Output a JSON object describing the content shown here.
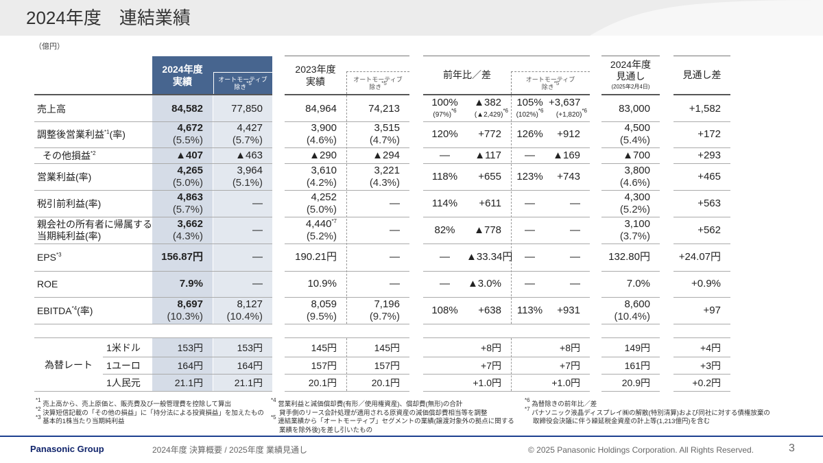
{
  "header": {
    "title": "2024年度　連結業績",
    "unit": "（億円）"
  },
  "table": {
    "column_headers": [
      [
        "2024年度",
        "実績"
      ],
      [
        "オートモーティブ",
        "除き*5"
      ],
      [
        "2023年度",
        "実績"
      ],
      [
        "オートモーティブ",
        "除き*5"
      ],
      [
        "前年比／差"
      ],
      [
        "オートモーティブ",
        "除き*5"
      ],
      [
        "2024年度",
        "見通し",
        "(2025年2月4日)"
      ],
      [
        "見通し差"
      ]
    ],
    "rows": [
      {
        "label": [
          "売上高"
        ],
        "cells": [
          [
            "84,582"
          ],
          [
            "77,850"
          ],
          [
            "84,964"
          ],
          [
            "74,213"
          ],
          [
            "100%",
            "(97%)*6"
          ],
          [
            "▲382",
            "(▲2,429)*6"
          ],
          [
            "105%",
            "(102%)*6"
          ],
          [
            "+3,637",
            "(+1,820)*6"
          ],
          [
            "83,000"
          ],
          [
            "+1,582"
          ]
        ]
      },
      {
        "label": [
          "調整後営業利益*1(率)"
        ],
        "cells": [
          [
            "4,672",
            "(5.5%)"
          ],
          [
            "4,427",
            "(5.7%)"
          ],
          [
            "3,900",
            "(4.6%)"
          ],
          [
            "3,515",
            "(4.7%)"
          ],
          [
            "120%"
          ],
          [
            "+772"
          ],
          [
            "126%"
          ],
          [
            "+912"
          ],
          [
            "4,500",
            "(5.4%)"
          ],
          [
            "+172"
          ]
        ]
      },
      {
        "label": [
          "その他損益*2"
        ],
        "cells": [
          [
            "▲407"
          ],
          [
            "▲463"
          ],
          [
            "▲290"
          ],
          [
            "▲294"
          ],
          [
            "—"
          ],
          [
            "▲117"
          ],
          [
            "—"
          ],
          [
            "▲169"
          ],
          [
            "▲700"
          ],
          [
            "+293"
          ]
        ]
      },
      {
        "label": [
          "営業利益(率)"
        ],
        "cells": [
          [
            "4,265",
            "(5.0%)"
          ],
          [
            "3,964",
            "(5.1%)"
          ],
          [
            "3,610",
            "(4.2%)"
          ],
          [
            "3,221",
            "(4.3%)"
          ],
          [
            "118%"
          ],
          [
            "+655"
          ],
          [
            "123%"
          ],
          [
            "+743"
          ],
          [
            "3,800",
            "(4.6%)"
          ],
          [
            "+465"
          ]
        ]
      },
      {
        "label": [
          "税引前利益(率)"
        ],
        "cells": [
          [
            "4,863",
            "(5.7%)"
          ],
          [
            "—"
          ],
          [
            "4,252",
            "(5.0%)"
          ],
          [
            "—"
          ],
          [
            "114%"
          ],
          [
            "+611"
          ],
          [
            "—"
          ],
          [
            "—"
          ],
          [
            "4,300",
            "(5.2%)"
          ],
          [
            "+563"
          ]
        ]
      },
      {
        "label": [
          "親会社の所有者に帰属する",
          "当期純利益(率)"
        ],
        "cells": [
          [
            "3,662",
            "(4.3%)"
          ],
          [
            "—"
          ],
          [
            "4,440*7",
            "(5.2%)"
          ],
          [
            "—"
          ],
          [
            "82%"
          ],
          [
            "▲778"
          ],
          [
            "—"
          ],
          [
            "—"
          ],
          [
            "3,100",
            "(3.7%)"
          ],
          [
            "+562"
          ]
        ]
      },
      {
        "label": [
          "EPS*3"
        ],
        "cells": [
          [
            "156.87円"
          ],
          [
            "—"
          ],
          [
            "190.21円"
          ],
          [
            "—"
          ],
          [
            "—"
          ],
          [
            "▲33.34円"
          ],
          [
            "—"
          ],
          [
            "—"
          ],
          [
            "132.80円"
          ],
          [
            "+24.07円"
          ]
        ]
      },
      {
        "label": [
          "ROE"
        ],
        "cells": [
          [
            "7.9%"
          ],
          [
            "—"
          ],
          [
            "10.9%"
          ],
          [
            "—"
          ],
          [
            "—"
          ],
          [
            "▲3.0%"
          ],
          [
            "—"
          ],
          [
            "—"
          ],
          [
            "7.0%"
          ],
          [
            "+0.9%"
          ]
        ]
      },
      {
        "label": [
          "EBITDA*4(率)"
        ],
        "cells": [
          [
            "8,697",
            "(10.3%)"
          ],
          [
            "8,127",
            "(10.4%)"
          ],
          [
            "8,059",
            "(9.5%)"
          ],
          [
            "7,196",
            "(9.7%)"
          ],
          [
            "108%"
          ],
          [
            "+638"
          ],
          [
            "113%"
          ],
          [
            "+931"
          ],
          [
            "8,600",
            "(10.4%)"
          ],
          [
            "+97"
          ]
        ]
      }
    ],
    "fx": {
      "label": "為替レート",
      "rows": [
        {
          "label": "1米ドル",
          "cells": [
            "153円",
            "153円",
            "145円",
            "145円",
            "+8円",
            "+8円",
            "149円",
            "+4円"
          ]
        },
        {
          "label": "1ユーロ",
          "cells": [
            "164円",
            "164円",
            "157円",
            "157円",
            "+7円",
            "+7円",
            "161円",
            "+3円"
          ]
        },
        {
          "label": "1人民元",
          "cells": [
            "21.1円",
            "21.1円",
            "20.1円",
            "20.1円",
            "+1.0円",
            "+1.0円",
            "20.9円",
            "+0.2円"
          ]
        }
      ]
    }
  },
  "footnotes": [
    [
      "*1 売上高から、売上原価と、販売費及び一般管理費を控除して算出",
      "*2 決算短信記載の「その他の損益」に「持分法による投資損益」を加えたもの",
      "*3 基本的1株当たり当期純利益"
    ],
    [
      "*4 営業利益と減価償却費(有形／使用権資産)、償却費(無形)の合計",
      "貸手側のリース会計処理が適用される原資産の減価償却費相当等を調整",
      "*5 連結業績から「オートモーティブ」セグメントの業績(譲渡対象外の拠点に関する",
      "業績を除外後)を差し引いたもの"
    ],
    [
      "*6 為替除きの前年比／差",
      "*7 パナソニック液晶ディスプレイ㈱の解散(特別清算)および同社に対する債権放棄の",
      "取締役会決議に伴う繰延税金資産の計上等(1,213億円)を含む"
    ]
  ],
  "footer": {
    "brand": "Panasonic Group",
    "subtitle": "2024年度 決算概要 / 2025年度 業績見通し",
    "copyright": "© 2025 Panasonic Holdings Corporation. All Rights Reserved.",
    "page": "3"
  }
}
